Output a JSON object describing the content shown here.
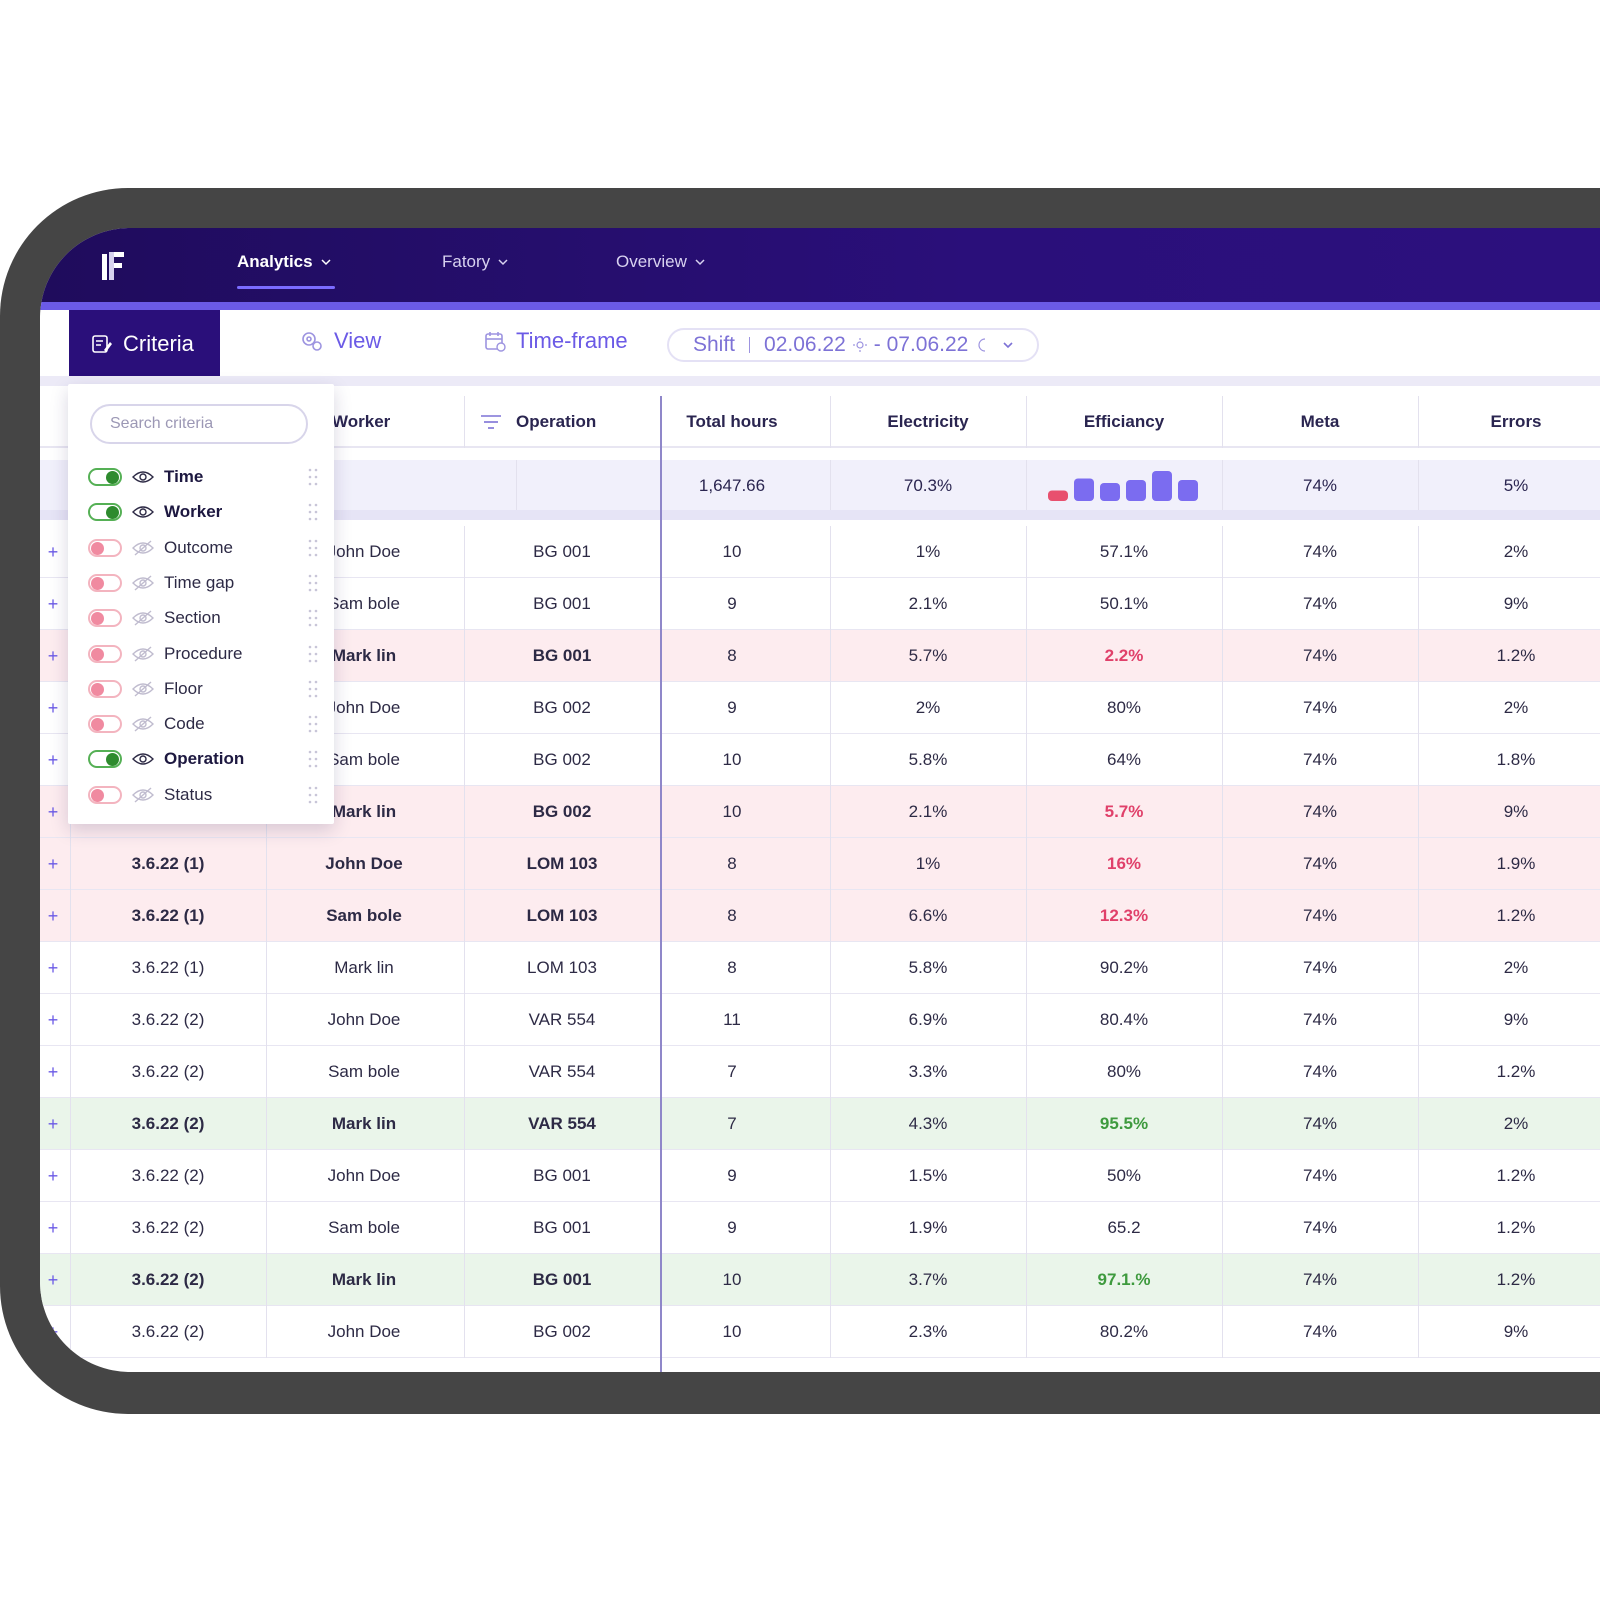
{
  "nav": {
    "items": [
      {
        "label": "Analytics",
        "active": true
      },
      {
        "label": "Fatory",
        "active": false
      },
      {
        "label": "Overview",
        "active": false
      }
    ]
  },
  "toolbar": {
    "criteria_label": "Criteria",
    "view_label": "View",
    "timeframe_label": "Time-frame",
    "shift_label": "Shift",
    "date_start": "02.06.22",
    "date_end": "- 07.06.22"
  },
  "criteria": {
    "search_placeholder": "Search criteria",
    "items": [
      {
        "label": "Time",
        "on": true
      },
      {
        "label": "Worker",
        "on": true
      },
      {
        "label": "Outcome",
        "on": false
      },
      {
        "label": "Time gap",
        "on": false
      },
      {
        "label": "Section",
        "on": false
      },
      {
        "label": "Procedure",
        "on": false
      },
      {
        "label": "Floor",
        "on": false
      },
      {
        "label": "Code",
        "on": false
      },
      {
        "label": "Operation",
        "on": true
      },
      {
        "label": "Status",
        "on": false
      }
    ]
  },
  "table": {
    "headers": {
      "worker": "Worker",
      "operation": "Operation",
      "total_hours": "Total hours",
      "electricity": "Electricity",
      "efficiency": "Efficiancy",
      "meta": "Meta",
      "errors": "Errors"
    },
    "summary": {
      "total_hours": "1,647.66",
      "electricity": "70.3%",
      "meta": "74%",
      "errors": "5%",
      "efficiency_bars": [
        0.35,
        0.75,
        0.6,
        0.7,
        1.0,
        0.7
      ],
      "efficiency_bar_colors": [
        "#e8506e",
        "#7b6cf0",
        "#7b6cf0",
        "#7b6cf0",
        "#7b6cf0",
        "#7b6cf0"
      ]
    },
    "rows": [
      {
        "time": "",
        "worker": "John Doe",
        "operation": "BG 001",
        "hours": "10",
        "electricity": "1%",
        "efficiency": "57.1%",
        "meta": "74%",
        "errors": "2%",
        "style": ""
      },
      {
        "time": "",
        "worker": "Sam bole",
        "operation": "BG 001",
        "hours": "9",
        "electricity": "2.1%",
        "efficiency": "50.1%",
        "meta": "74%",
        "errors": "9%",
        "style": ""
      },
      {
        "time": "",
        "worker": "Mark lin",
        "operation": "BG 001",
        "hours": "8",
        "electricity": "5.7%",
        "efficiency": "2.2%",
        "meta": "74%",
        "errors": "1.2%",
        "style": "red"
      },
      {
        "time": "",
        "worker": "John Doe",
        "operation": "BG 002",
        "hours": "9",
        "electricity": "2%",
        "efficiency": "80%",
        "meta": "74%",
        "errors": "2%",
        "style": ""
      },
      {
        "time": "",
        "worker": "Sam bole",
        "operation": "BG 002",
        "hours": "10",
        "electricity": "5.8%",
        "efficiency": "64%",
        "meta": "74%",
        "errors": "1.8%",
        "style": ""
      },
      {
        "time": "",
        "worker": "Mark lin",
        "operation": "BG 002",
        "hours": "10",
        "electricity": "2.1%",
        "efficiency": "5.7%",
        "meta": "74%",
        "errors": "9%",
        "style": "red"
      },
      {
        "time": "3.6.22 (1)",
        "worker": "John Doe",
        "operation": "LOM 103",
        "hours": "8",
        "electricity": "1%",
        "efficiency": "16%",
        "meta": "74%",
        "errors": "1.9%",
        "style": "red"
      },
      {
        "time": "3.6.22 (1)",
        "worker": "Sam bole",
        "operation": "LOM 103",
        "hours": "8",
        "electricity": "6.6%",
        "efficiency": "12.3%",
        "meta": "74%",
        "errors": "1.2%",
        "style": "red"
      },
      {
        "time": "3.6.22 (1)",
        "worker": "Mark lin",
        "operation": "LOM 103",
        "hours": "8",
        "electricity": "5.8%",
        "efficiency": "90.2%",
        "meta": "74%",
        "errors": "2%",
        "style": ""
      },
      {
        "time": "3.6.22 (2)",
        "worker": "John Doe",
        "operation": "VAR 554",
        "hours": "11",
        "electricity": "6.9%",
        "efficiency": "80.4%",
        "meta": "74%",
        "errors": "9%",
        "style": ""
      },
      {
        "time": "3.6.22 (2)",
        "worker": "Sam bole",
        "operation": "VAR 554",
        "hours": "7",
        "electricity": "3.3%",
        "efficiency": "80%",
        "meta": "74%",
        "errors": "1.2%",
        "style": ""
      },
      {
        "time": "3.6.22 (2)",
        "worker": "Mark lin",
        "operation": "VAR 554",
        "hours": "7",
        "electricity": "4.3%",
        "efficiency": "95.5%",
        "meta": "74%",
        "errors": "2%",
        "style": "green"
      },
      {
        "time": "3.6.22 (2)",
        "worker": "John Doe",
        "operation": "BG 001",
        "hours": "9",
        "electricity": "1.5%",
        "efficiency": "50%",
        "meta": "74%",
        "errors": "1.2%",
        "style": ""
      },
      {
        "time": "3.6.22 (2)",
        "worker": "Sam bole",
        "operation": "BG 001",
        "hours": "9",
        "electricity": "1.9%",
        "efficiency": "65.2",
        "meta": "74%",
        "errors": "1.2%",
        "style": ""
      },
      {
        "time": "3.6.22 (2)",
        "worker": "Mark lin",
        "operation": "BG 001",
        "hours": "10",
        "electricity": "3.7%",
        "efficiency": "97.1.%",
        "meta": "74%",
        "errors": "1.2%",
        "style": "green"
      },
      {
        "time": "3.6.22 (2)",
        "worker": "John Doe",
        "operation": "BG 002",
        "hours": "10",
        "electricity": "2.3%",
        "efficiency": "80.2%",
        "meta": "74%",
        "errors": "9%",
        "style": ""
      }
    ]
  },
  "colors": {
    "nav_bg": "#2a0f7a",
    "accent": "#6b5ae6",
    "row_red": "#fdecef",
    "row_green": "#eaf5ea",
    "eff_red": "#e0406a",
    "eff_green": "#3e9a3e"
  }
}
